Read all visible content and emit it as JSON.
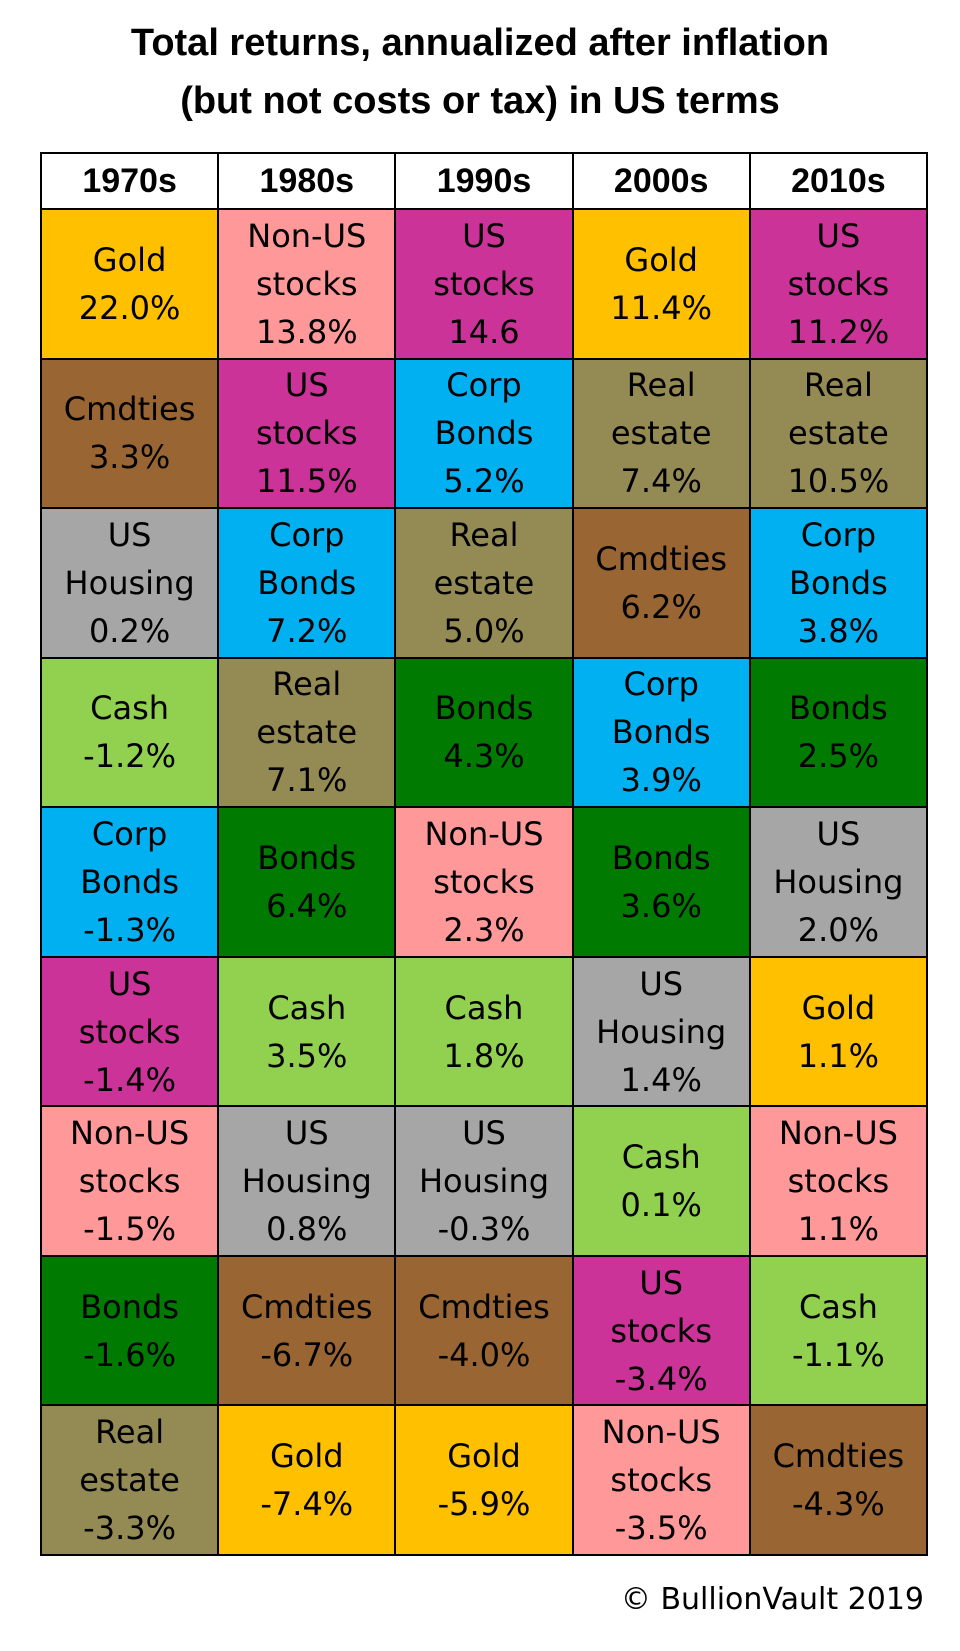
{
  "title_line1": "Total returns, annualized after inflation",
  "title_line2": "(but not costs or tax) in US terms",
  "credit": "© BullionVault 2019",
  "colors": {
    "Gold": "#ffc000",
    "Non-US stocks": "#ff9999",
    "US stocks": "#cc3399",
    "Cmdties": "#996633",
    "Corp Bonds": "#00b0f0",
    "Real estate": "#948a54",
    "US Housing": "#a6a6a6",
    "Cash": "#92d050",
    "Bonds": "#007a00"
  },
  "chart_data": {
    "type": "table",
    "title": "Total returns, annualized after inflation (but not costs or tax) in US terms",
    "unit": "%",
    "columns": [
      {
        "decade": "1970s",
        "rank": [
          {
            "lines": [
              "Gold",
              "22.0%"
            ],
            "asset": "Gold",
            "value": 22.0
          },
          {
            "lines": [
              "Cmdties",
              "3.3%"
            ],
            "asset": "Cmdties",
            "value": 3.3
          },
          {
            "lines": [
              "US",
              "Housing",
              "0.2%"
            ],
            "asset": "US Housing",
            "value": 0.2
          },
          {
            "lines": [
              "Cash",
              "-1.2%"
            ],
            "asset": "Cash",
            "value": -1.2
          },
          {
            "lines": [
              "Corp",
              "Bonds",
              "-1.3%"
            ],
            "asset": "Corp Bonds",
            "value": -1.3
          },
          {
            "lines": [
              "US",
              "stocks",
              "-1.4%"
            ],
            "asset": "US stocks",
            "value": -1.4
          },
          {
            "lines": [
              "Non-US",
              "stocks",
              "-1.5%"
            ],
            "asset": "Non-US stocks",
            "value": -1.5
          },
          {
            "lines": [
              "Bonds",
              "-1.6%"
            ],
            "asset": "Bonds",
            "value": -1.6
          },
          {
            "lines": [
              "Real",
              "estate",
              "-3.3%"
            ],
            "asset": "Real estate",
            "value": -3.3
          }
        ]
      },
      {
        "decade": "1980s",
        "rank": [
          {
            "lines": [
              "Non-US",
              "stocks",
              "13.8%"
            ],
            "asset": "Non-US stocks",
            "value": 13.8
          },
          {
            "lines": [
              "US",
              "stocks",
              "11.5%"
            ],
            "asset": "US stocks",
            "value": 11.5
          },
          {
            "lines": [
              "Corp",
              "Bonds",
              "7.2%"
            ],
            "asset": "Corp Bonds",
            "value": 7.2
          },
          {
            "lines": [
              "Real",
              "estate",
              "7.1%"
            ],
            "asset": "Real estate",
            "value": 7.1
          },
          {
            "lines": [
              "Bonds",
              "6.4%"
            ],
            "asset": "Bonds",
            "value": 6.4
          },
          {
            "lines": [
              "Cash",
              "3.5%"
            ],
            "asset": "Cash",
            "value": 3.5
          },
          {
            "lines": [
              "US",
              "Housing",
              "0.8%"
            ],
            "asset": "US Housing",
            "value": 0.8
          },
          {
            "lines": [
              "Cmdties",
              "-6.7%"
            ],
            "asset": "Cmdties",
            "value": -6.7
          },
          {
            "lines": [
              "Gold",
              "-7.4%"
            ],
            "asset": "Gold",
            "value": -7.4
          }
        ]
      },
      {
        "decade": "1990s",
        "rank": [
          {
            "lines": [
              "US",
              "stocks",
              "14.6"
            ],
            "asset": "US stocks",
            "value": 14.6
          },
          {
            "lines": [
              "Corp",
              "Bonds",
              "5.2%"
            ],
            "asset": "Corp Bonds",
            "value": 5.2
          },
          {
            "lines": [
              "Real",
              "estate",
              "5.0%"
            ],
            "asset": "Real estate",
            "value": 5.0
          },
          {
            "lines": [
              "Bonds",
              "4.3%"
            ],
            "asset": "Bonds",
            "value": 4.3
          },
          {
            "lines": [
              "Non-US",
              "stocks",
              "2.3%"
            ],
            "asset": "Non-US stocks",
            "value": 2.3
          },
          {
            "lines": [
              "Cash",
              "1.8%"
            ],
            "asset": "Cash",
            "value": 1.8
          },
          {
            "lines": [
              "US",
              "Housing",
              "-0.3%"
            ],
            "asset": "US Housing",
            "value": -0.3
          },
          {
            "lines": [
              "Cmdties",
              "-4.0%"
            ],
            "asset": "Cmdties",
            "value": -4.0
          },
          {
            "lines": [
              "Gold",
              "-5.9%"
            ],
            "asset": "Gold",
            "value": -5.9
          }
        ]
      },
      {
        "decade": "2000s",
        "rank": [
          {
            "lines": [
              "Gold",
              "11.4%"
            ],
            "asset": "Gold",
            "value": 11.4
          },
          {
            "lines": [
              "Real",
              "estate",
              "7.4%"
            ],
            "asset": "Real estate",
            "value": 7.4
          },
          {
            "lines": [
              "Cmdties",
              "6.2%"
            ],
            "asset": "Cmdties",
            "value": 6.2
          },
          {
            "lines": [
              "Corp",
              "Bonds",
              "3.9%"
            ],
            "asset": "Corp Bonds",
            "value": 3.9
          },
          {
            "lines": [
              "Bonds",
              "3.6%"
            ],
            "asset": "Bonds",
            "value": 3.6
          },
          {
            "lines": [
              "US",
              "Housing",
              "1.4%"
            ],
            "asset": "US Housing",
            "value": 1.4
          },
          {
            "lines": [
              "Cash",
              "0.1%"
            ],
            "asset": "Cash",
            "value": 0.1
          },
          {
            "lines": [
              "US",
              "stocks",
              "-3.4%"
            ],
            "asset": "US stocks",
            "value": -3.4
          },
          {
            "lines": [
              "Non-US",
              "stocks",
              "-3.5%"
            ],
            "asset": "Non-US stocks",
            "value": -3.5
          }
        ]
      },
      {
        "decade": "2010s",
        "rank": [
          {
            "lines": [
              "US",
              "stocks",
              "11.2%"
            ],
            "asset": "US stocks",
            "value": 11.2
          },
          {
            "lines": [
              "Real",
              "estate",
              "10.5%"
            ],
            "asset": "Real estate",
            "value": 10.5
          },
          {
            "lines": [
              "Corp",
              "Bonds",
              "3.8%"
            ],
            "asset": "Corp Bonds",
            "value": 3.8
          },
          {
            "lines": [
              "Bonds",
              "2.5%"
            ],
            "asset": "Bonds",
            "value": 2.5
          },
          {
            "lines": [
              "US",
              "Housing",
              "2.0%"
            ],
            "asset": "US Housing",
            "value": 2.0
          },
          {
            "lines": [
              "Gold",
              "1.1%"
            ],
            "asset": "Gold",
            "value": 1.1
          },
          {
            "lines": [
              "Non-US",
              "stocks",
              "1.1%"
            ],
            "asset": "Non-US stocks",
            "value": 1.1
          },
          {
            "lines": [
              "Cash",
              "-1.1%"
            ],
            "asset": "Cash",
            "value": -1.1
          },
          {
            "lines": [
              "Cmdties",
              "-4.3%"
            ],
            "asset": "Cmdties",
            "value": -4.3
          }
        ]
      }
    ]
  }
}
